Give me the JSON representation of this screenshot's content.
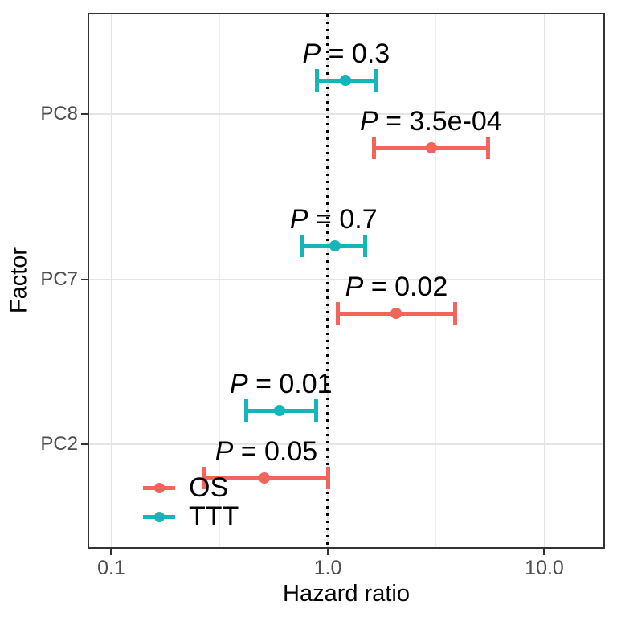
{
  "figure": {
    "background": "#ffffff"
  },
  "colors": {
    "os_series": "#f4635c",
    "ttt_series": "#14b6b9",
    "panel_border": "#333333",
    "grid_major": "#e4e4e4",
    "grid_minor": "#eeeeee",
    "tick_label": "#4d4d4d",
    "text": "#000000"
  },
  "chart_data": {
    "type": "errorbar",
    "subtype": "forest-plot",
    "orientation": "horizontal",
    "title": "",
    "xlabel": "Hazard ratio",
    "ylabel": "Factor",
    "x_scale": "log10",
    "xlim": [
      0.078,
      19
    ],
    "x_ticks": {
      "values": [
        0.1,
        1.0,
        10.0
      ],
      "labels": [
        "0.1",
        "1.0",
        "10.0"
      ]
    },
    "x_minor_ticks": [
      0.316,
      3.16
    ],
    "categories": [
      "PC8",
      "PC7",
      "PC2"
    ],
    "grid": "on",
    "reference_line": {
      "x": 1.0,
      "style": "dotted",
      "color": "#000000"
    },
    "legend": {
      "position": "inside-bottom-left",
      "entries": [
        {
          "label": "OS",
          "color": "#f4635c"
        },
        {
          "label": "TTT",
          "color": "#14b6b9"
        }
      ]
    },
    "series": [
      {
        "name": "OS",
        "color": "#f4635c",
        "dodge": "below",
        "points": [
          {
            "factor": "PC8",
            "hr": 3.0,
            "ci_low": 1.63,
            "ci_high": 5.5,
            "p_label": "P = 3.5e-04"
          },
          {
            "factor": "PC7",
            "hr": 2.07,
            "ci_low": 1.11,
            "ci_high": 3.88,
            "p_label": "P = 0.02"
          },
          {
            "factor": "PC2",
            "hr": 0.51,
            "ci_low": 0.27,
            "ci_high": 1.0,
            "p_label": "P = 0.05"
          }
        ]
      },
      {
        "name": "TTT",
        "color": "#14b6b9",
        "dodge": "above",
        "points": [
          {
            "factor": "PC8",
            "hr": 1.21,
            "ci_low": 0.89,
            "ci_high": 1.66,
            "p_label": "P = 0.3"
          },
          {
            "factor": "PC7",
            "hr": 1.08,
            "ci_low": 0.76,
            "ci_high": 1.49,
            "p_label": "P = 0.7"
          },
          {
            "factor": "PC2",
            "hr": 0.6,
            "ci_low": 0.42,
            "ci_high": 0.88,
            "p_label": "P = 0.01"
          }
        ]
      }
    ]
  }
}
